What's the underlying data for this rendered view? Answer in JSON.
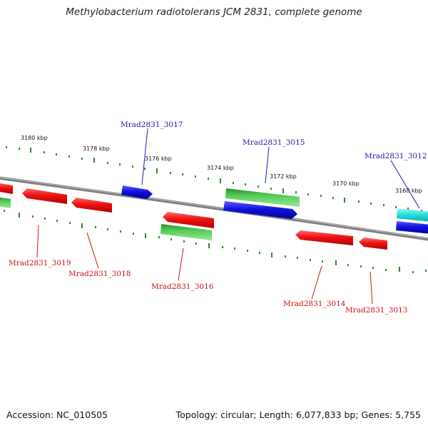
{
  "title": "Methylobacterium radiotolerans JCM 2831, complete genome",
  "footer": {
    "accession": "Accession: NC_010505",
    "summary": "Topology: circular; Length: 6,077,833 bp; Genes: 5,755"
  },
  "colors": {
    "forward_label": "#1a1aa8",
    "reverse_label": "#cc1111",
    "tick_dots": "#2a8a2a",
    "backbone": "#8a8a8a",
    "red_gene": "#ee1111",
    "blue_gene": "#1111dd",
    "green_gene": "#33bb33",
    "cyan_gene": "#22dddd"
  },
  "scale_labels": [
    "3180 kbp",
    "3178 kbp",
    "3176 kbp",
    "3174 kbp",
    "3172 kbp",
    "3170 kbp",
    "3168 kbp"
  ],
  "genes_forward": [
    {
      "label": "Mrad2831_3017"
    },
    {
      "label": "Mrad2831_3015"
    },
    {
      "label": "Mrad2831_3012"
    }
  ],
  "genes_reverse": [
    {
      "label": "Mrad2831_3019"
    },
    {
      "label": "Mrad2831_3018"
    },
    {
      "label": "Mrad2831_3016"
    },
    {
      "label": "Mrad2831_3014"
    },
    {
      "label": "Mrad2831_3013"
    }
  ]
}
